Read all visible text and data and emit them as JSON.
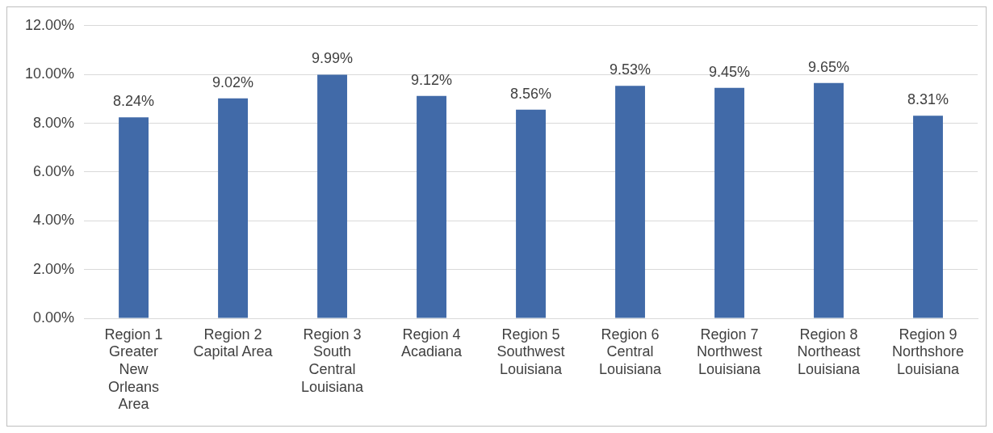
{
  "chart_data": {
    "type": "bar",
    "categories": [
      "Region 1 Greater New Orleans Area",
      "Region 2 Capital Area",
      "Region 3 South Central Louisiana",
      "Region 4 Acadiana",
      "Region 5 Southwest Louisiana",
      "Region 6 Central Louisiana",
      "Region 7 Northwest Louisiana",
      "Region 8 Northeast Louisiana",
      "Region 9 Northshore Louisiana"
    ],
    "values": [
      8.24,
      9.02,
      9.99,
      9.12,
      8.56,
      9.53,
      9.45,
      9.65,
      8.31
    ],
    "value_labels": [
      "8.24%",
      "9.02%",
      "9.99%",
      "9.12%",
      "8.56%",
      "9.53%",
      "9.45%",
      "9.65%",
      "8.31%"
    ],
    "color": "#416aa8",
    "ylim": [
      0,
      12
    ],
    "yticks": [
      {
        "value": 0,
        "label": "0.00%"
      },
      {
        "value": 2,
        "label": "2.00%"
      },
      {
        "value": 4,
        "label": "4.00%"
      },
      {
        "value": 6,
        "label": "6.00%"
      },
      {
        "value": 8,
        "label": "8.00%"
      },
      {
        "value": 10,
        "label": "10.00%"
      },
      {
        "value": 12,
        "label": "12.00%"
      }
    ],
    "grid": "y",
    "legend": false
  }
}
